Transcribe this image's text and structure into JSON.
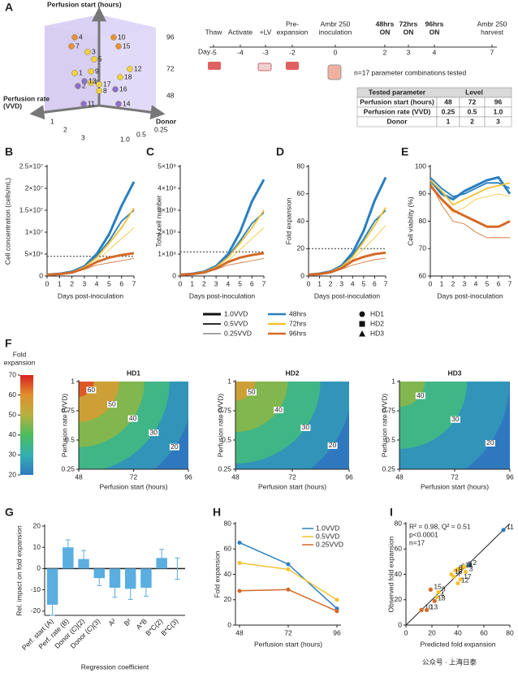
{
  "panel_a": {
    "panel": "A",
    "cube": {
      "start_axis": "Perfusion start (hours)",
      "rate_axis": [
        "Perfusion rate",
        "(VVD)"
      ],
      "donor_axis": "Donor",
      "start_ticks": [
        "96",
        "72",
        "48"
      ],
      "left_ticks": [
        "1",
        "2",
        "3"
      ],
      "right_ticks": [
        "0.25",
        "0.5",
        "1.0"
      ],
      "points": [
        {
          "label": "4",
          "color": "#e8903a"
        },
        {
          "label": "10",
          "color": "#e8903a"
        },
        {
          "label": "7",
          "color": "#e8903a"
        },
        {
          "label": "15",
          "color": "#e8903a"
        },
        {
          "label": "3",
          "color": "#f2d23a"
        },
        {
          "label": "5",
          "color": "#f2d23a"
        },
        {
          "label": "12",
          "color": "#f2d23a"
        },
        {
          "label": "1",
          "color": "#f2d23a"
        },
        {
          "label": "9",
          "color": "#f2d23a"
        },
        {
          "label": "18",
          "color": "#f2d23a"
        },
        {
          "label": "2",
          "color": "#8a6fd0"
        },
        {
          "label": "6",
          "color": "#f2d23a"
        },
        {
          "label": "17",
          "color": "#f2d23a"
        },
        {
          "label": "8",
          "color": "#f2d23a"
        },
        {
          "label": "13",
          "color": "#8a6fd0"
        },
        {
          "label": "16",
          "color": "#8a6fd0"
        },
        {
          "label": "11",
          "color": "#8a6fd0"
        },
        {
          "label": "14",
          "color": "#8a6fd0"
        }
      ]
    },
    "timeline": {
      "day_label": "Day",
      "steps": [
        {
          "label": [
            "Thaw"
          ],
          "day": "-5"
        },
        {
          "label": [
            "Activate"
          ],
          "day": "-4"
        },
        {
          "label": [
            "+LV"
          ],
          "day": "-3"
        },
        {
          "label": [
            "Pre-",
            "expansion"
          ],
          "day": "-2"
        },
        {
          "label": [
            "Ambr 250",
            "inoculation"
          ],
          "day": "0"
        },
        {
          "label": [
            "48hrs",
            "ON"
          ],
          "day": "2",
          "color": "#2a9fd0"
        },
        {
          "label": [
            "72hrs",
            "ON"
          ],
          "day": "3",
          "color": "#e0b400"
        },
        {
          "label": [
            "96hrs",
            "ON"
          ],
          "day": "4",
          "color": "#e07020"
        },
        {
          "label": [
            "Ambr 250",
            "harvest"
          ],
          "day": "7"
        }
      ],
      "note": "n=17 parameter combinations tested"
    },
    "table": {
      "header": [
        "Tested parameter",
        "Level"
      ],
      "rows": [
        [
          "Perfusion start (hours)",
          "48",
          "72",
          "96"
        ],
        [
          "Perfusion rate (VVD)",
          "0.25",
          "0.5",
          "1.0"
        ],
        [
          "Donor",
          "1",
          "2",
          "3"
        ]
      ],
      "level_colors": [
        "#2a9fd0",
        "#e0b400",
        "#e07020"
      ]
    }
  },
  "legend": {
    "rate": [
      {
        "label": "1.0VVD",
        "width": 3
      },
      {
        "label": "0.5VVD",
        "width": 1.8
      },
      {
        "label": "0.25VVD",
        "width": 0.8
      }
    ],
    "start": [
      {
        "label": "48hrs",
        "color": "#2a7fc0"
      },
      {
        "label": "72hrs",
        "color": "#f2c230"
      },
      {
        "label": "96hrs",
        "color": "#d46a28"
      }
    ],
    "donor": [
      {
        "label": "HD1",
        "marker": "circle"
      },
      {
        "label": "HD2",
        "marker": "square"
      },
      {
        "label": "HD3",
        "marker": "triangle"
      }
    ]
  },
  "colorbar": {
    "title": [
      "Fold",
      "expansion"
    ],
    "lim": [
      20,
      70
    ],
    "ticks": [
      20,
      30,
      40,
      50,
      60,
      70
    ]
  },
  "watermark": "公众号 · 上海日泰",
  "chart_data": [
    {
      "type": "line",
      "panel": "B",
      "xlabel": "Days post-inoculation",
      "ylabel": "Cell concentration (cells/mL)",
      "x": [
        0,
        1,
        2,
        3,
        4,
        5,
        6,
        7
      ],
      "xlim": [
        0,
        7
      ],
      "xticks": [
        0,
        1,
        2,
        3,
        4,
        5,
        6,
        7
      ],
      "ylim": [
        0,
        25000000
      ],
      "yticks": [
        0,
        {
          "value": 5000000,
          "label": "5×10⁶"
        },
        {
          "value": 10000000,
          "label": "1×10⁷"
        },
        {
          "value": 15000000,
          "label": "1.5×10⁷"
        },
        {
          "value": 20000000,
          "label": "2×10⁷"
        },
        {
          "value": 25000000,
          "label": "2.5×10⁷"
        }
      ],
      "ref_line": 4500000,
      "series": [
        {
          "color": "#2a7fc0",
          "width": 3,
          "values": [
            300000,
            500000,
            1000000,
            2200000,
            5000000,
            9500000,
            16000000,
            21500000
          ]
        },
        {
          "color": "#2a7fc0",
          "width": 1.8,
          "values": [
            300000,
            500000,
            1000000,
            2000000,
            4500000,
            8000000,
            12500000,
            15000000
          ]
        },
        {
          "color": "#f2c230",
          "width": 1.8,
          "values": [
            300000,
            500000,
            900000,
            2000000,
            4200000,
            7500000,
            11000000,
            15500000
          ]
        },
        {
          "color": "#f2c230",
          "width": 0.8,
          "values": [
            300000,
            450000,
            800000,
            1800000,
            3500000,
            6000000,
            8500000,
            11000000
          ]
        },
        {
          "color": "#d46a28",
          "width": 3,
          "values": [
            300000,
            450000,
            800000,
            1700000,
            3200000,
            4200000,
            4800000,
            5200000
          ]
        },
        {
          "color": "#d46a28",
          "width": 0.8,
          "values": [
            300000,
            450000,
            700000,
            1500000,
            2500000,
            3000000,
            3500000,
            4000000
          ]
        }
      ]
    },
    {
      "type": "line",
      "panel": "C",
      "xlabel": "Days post-inoculation",
      "ylabel": "Total cell number",
      "x": [
        0,
        1,
        2,
        3,
        4,
        5,
        6,
        7
      ],
      "xlim": [
        0,
        7
      ],
      "xticks": [
        0,
        1,
        2,
        3,
        4,
        5,
        6,
        7
      ],
      "ylim": [
        0,
        5000000000
      ],
      "yticks": [
        0,
        {
          "value": 1000000000,
          "label": "1×10⁹"
        },
        {
          "value": 2000000000,
          "label": "2×10⁹"
        },
        {
          "value": 3000000000,
          "label": "3×10⁹"
        },
        {
          "value": 4000000000,
          "label": "4×10⁹"
        },
        {
          "value": 5000000000,
          "label": "5×10⁹"
        }
      ],
      "ref_line": 1100000000,
      "series": [
        {
          "color": "#2a7fc0",
          "width": 3,
          "values": [
            60000000,
            100000000,
            200000000,
            450000000,
            1000000000,
            2000000000,
            3400000000,
            4400000000
          ]
        },
        {
          "color": "#2a7fc0",
          "width": 1.8,
          "values": [
            60000000,
            100000000,
            200000000,
            420000000,
            900000000,
            1600000000,
            2400000000,
            2900000000
          ]
        },
        {
          "color": "#f2c230",
          "width": 1.8,
          "values": [
            60000000,
            100000000,
            190000000,
            400000000,
            850000000,
            1500000000,
            2200000000,
            3000000000
          ]
        },
        {
          "color": "#f2c230",
          "width": 0.8,
          "values": [
            60000000,
            90000000,
            170000000,
            360000000,
            700000000,
            1200000000,
            1700000000,
            2200000000
          ]
        },
        {
          "color": "#d46a28",
          "width": 3,
          "values": [
            60000000,
            90000000,
            160000000,
            340000000,
            640000000,
            840000000,
            960000000,
            1040000000
          ]
        },
        {
          "color": "#d46a28",
          "width": 0.8,
          "values": [
            60000000,
            90000000,
            140000000,
            300000000,
            500000000,
            600000000,
            700000000,
            800000000
          ]
        }
      ]
    },
    {
      "type": "line",
      "panel": "D",
      "xlabel": "Days post-inoculation",
      "ylabel": "Fold expansion",
      "x": [
        0,
        1,
        2,
        3,
        4,
        5,
        6,
        7
      ],
      "xlim": [
        0,
        7
      ],
      "xticks": [
        0,
        1,
        2,
        3,
        4,
        5,
        6,
        7
      ],
      "ylim": [
        0,
        80
      ],
      "yticks": [
        0,
        20,
        40,
        60,
        80
      ],
      "ref_line": 20,
      "series": [
        {
          "color": "#2a7fc0",
          "width": 3,
          "values": [
            1,
            1.7,
            3.3,
            7.5,
            17,
            33,
            55,
            72
          ]
        },
        {
          "color": "#2a7fc0",
          "width": 1.8,
          "values": [
            1,
            1.7,
            3.3,
            7,
            15,
            27,
            40,
            48
          ]
        },
        {
          "color": "#f2c230",
          "width": 1.8,
          "values": [
            1,
            1.7,
            3.2,
            6.7,
            14,
            25,
            37,
            50
          ]
        },
        {
          "color": "#f2c230",
          "width": 0.8,
          "values": [
            1,
            1.5,
            2.8,
            6,
            12,
            20,
            28,
            37
          ]
        },
        {
          "color": "#d46a28",
          "width": 3,
          "values": [
            1,
            1.5,
            2.7,
            5.7,
            11,
            14,
            16,
            17
          ]
        },
        {
          "color": "#d46a28",
          "width": 0.8,
          "values": [
            1,
            1.5,
            2.3,
            5,
            8,
            10,
            12,
            13
          ]
        }
      ]
    },
    {
      "type": "line",
      "panel": "E",
      "xlabel": "Days post-inoculation",
      "ylabel": "Cell viability (%)",
      "x": [
        0,
        1,
        2,
        3,
        4,
        5,
        6,
        7
      ],
      "xlim": [
        0,
        7
      ],
      "xticks": [
        0,
        1,
        2,
        3,
        4,
        5,
        6,
        7
      ],
      "ylim": [
        60,
        100
      ],
      "yticks": [
        60,
        70,
        80,
        90,
        100
      ],
      "series": [
        {
          "color": "#2a7fc0",
          "width": 3,
          "values": [
            95,
            90,
            88,
            91,
            93,
            95,
            96,
            90
          ]
        },
        {
          "color": "#2a7fc0",
          "width": 1.8,
          "values": [
            96,
            92,
            89,
            90,
            92,
            94,
            94,
            92
          ]
        },
        {
          "color": "#f2c230",
          "width": 1.8,
          "values": [
            95,
            91,
            86,
            88,
            90,
            92,
            93,
            94
          ]
        },
        {
          "color": "#f2c230",
          "width": 0.8,
          "values": [
            94,
            88,
            83,
            85,
            88,
            89,
            90,
            89
          ]
        },
        {
          "color": "#d46a28",
          "width": 3,
          "values": [
            93,
            88,
            84,
            82,
            80,
            78,
            78,
            80
          ]
        },
        {
          "color": "#d46a28",
          "width": 0.8,
          "values": [
            94,
            86,
            80,
            79,
            76,
            74,
            74,
            74
          ]
        }
      ]
    },
    {
      "type": "contour",
      "panel": "F",
      "title": "HD1",
      "xlabel": "Perfusion start (hours)",
      "ylabel": "Perfusion rate (VVD)",
      "xlim": [
        48,
        96
      ],
      "xticks": [
        48,
        72,
        96
      ],
      "ylim": [
        0.25,
        1
      ],
      "yticks": [
        0.25,
        0.5,
        0.75,
        1
      ],
      "levels": [
        60,
        50,
        40,
        30,
        20
      ]
    },
    {
      "type": "contour",
      "title": "HD2",
      "xlabel": "Perfusion start (hours)",
      "ylabel": "Perfusion rate (VVD)",
      "xlim": [
        48,
        96
      ],
      "xticks": [
        48,
        72,
        96
      ],
      "ylim": [
        0.25,
        1
      ],
      "yticks": [
        0.25,
        0.5,
        0.75,
        1
      ],
      "levels": [
        50,
        40,
        30,
        20
      ]
    },
    {
      "type": "contour",
      "title": "HD3",
      "xlabel": "Perfusion start (hours)",
      "ylabel": "Perfusion rate (VVD)",
      "xlim": [
        48,
        96
      ],
      "xticks": [
        48,
        72,
        96
      ],
      "ylim": [
        0.25,
        1
      ],
      "yticks": [
        0.25,
        0.5,
        0.75,
        1
      ],
      "levels": [
        40,
        30,
        20
      ]
    },
    {
      "type": "bar",
      "panel": "G",
      "xlabel": "Regression coefficient",
      "ylabel": "Rel. impact on fold expansion",
      "categories": [
        "Perf. start (A)",
        "Perf. rate (B)",
        "Donor (C)(2)",
        "Donor (C)(3)",
        "A²",
        "B²",
        "A*B",
        "B*C(2)",
        "B*C(3)"
      ],
      "values": [
        -17,
        10,
        4.5,
        -4.5,
        -9,
        -9.5,
        -9,
        5,
        0
      ],
      "errors": [
        5,
        3.5,
        4,
        3.5,
        4.5,
        5,
        4,
        4,
        5
      ],
      "color": "#5aaee0",
      "ylim": [
        -22,
        20
      ],
      "yticks": [
        -20,
        -10,
        0,
        10,
        20
      ]
    },
    {
      "type": "line",
      "panel": "H",
      "xlabel": "Perfusion start (hours)",
      "ylabel": "Fold expansion",
      "x": [
        48,
        72,
        96
      ],
      "xlim": [
        46,
        98
      ],
      "xticks": [
        48,
        72,
        96
      ],
      "ylim": [
        0,
        80
      ],
      "yticks": [
        0,
        20,
        40,
        60,
        80
      ],
      "markers": true,
      "legend": "upper right",
      "series": [
        {
          "name": "1.0VVD",
          "color": "#2a7fc0",
          "width": 1.5,
          "values": [
            65,
            48,
            13
          ]
        },
        {
          "name": "0.5VVD",
          "color": "#f2c230",
          "width": 1.5,
          "values": [
            49,
            44,
            20
          ]
        },
        {
          "name": "0.25VVD",
          "color": "#d46a28",
          "width": 1.5,
          "values": [
            27,
            28,
            11
          ]
        }
      ]
    },
    {
      "type": "scatter",
      "panel": "I",
      "xlabel": "Predicted fold expansion",
      "ylabel": "Observed fold expansion",
      "xlim": [
        0,
        80
      ],
      "xticks": [
        0,
        20,
        40,
        60,
        80
      ],
      "ylim": [
        0,
        80
      ],
      "yticks": [
        0,
        20,
        40,
        60,
        80
      ],
      "annotations": [
        "R² = 0.98, Q² = 0.51",
        "p<0.0001",
        "n=17"
      ],
      "point_labels": [
        "11",
        "2",
        "3",
        "14",
        "5",
        "6",
        "16",
        "7",
        "17",
        "12",
        "8",
        "15",
        "4",
        "18",
        "10",
        "13",
        "9"
      ],
      "x": [
        75,
        49,
        46,
        43,
        40,
        38,
        35,
        37,
        42,
        40,
        25,
        19,
        24,
        22,
        12,
        16,
        45
      ],
      "values": [
        75,
        47,
        42,
        45,
        44,
        43,
        40,
        38,
        36,
        33,
        26,
        28,
        22,
        19,
        12,
        12,
        46
      ],
      "colors": [
        "#2a7fc0",
        "#2a7fc0",
        "#f2c230",
        "#f2c230",
        "#f2c230",
        "#f2c230",
        "#f2c230",
        "#f2c230",
        "#f2c230",
        "#f2c230",
        "#f2c230",
        "#d46a28",
        "#f2c230",
        "#d46a28",
        "#d46a28",
        "#d46a28",
        "#f2c230"
      ]
    }
  ]
}
